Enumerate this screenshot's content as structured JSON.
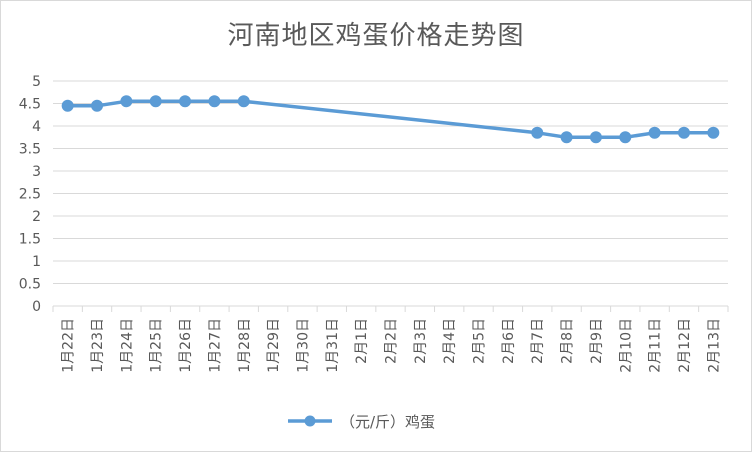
{
  "chart_data": {
    "type": "line",
    "title": "河南地区鸡蛋价格走势图",
    "categories": [
      "1月22日",
      "1月23日",
      "1月24日",
      "1月25日",
      "1月26日",
      "1月27日",
      "1月28日",
      "1月29日",
      "1月30日",
      "1月31日",
      "2月1日",
      "2月2日",
      "2月3日",
      "2月4日",
      "2月5日",
      "2月6日",
      "2月7日",
      "2月8日",
      "2月9日",
      "2月10日",
      "2月11日",
      "2月12日",
      "2月13日"
    ],
    "series": [
      {
        "name": "（元/斤）鸡蛋",
        "values": [
          4.45,
          4.45,
          4.55,
          4.55,
          4.55,
          4.55,
          4.55,
          null,
          null,
          null,
          null,
          null,
          null,
          null,
          null,
          null,
          3.85,
          3.75,
          3.75,
          3.75,
          3.85,
          3.85,
          3.85
        ]
      }
    ],
    "ylim": [
      0,
      5
    ],
    "yticks": [
      "0",
      "0.5",
      "1",
      "1.5",
      "2",
      "2.5",
      "3",
      "3.5",
      "4",
      "4.5",
      "5"
    ],
    "grid": true,
    "legend": "bottom",
    "colors": {
      "line": "#5b9bd5",
      "grid": "#d9d9d9",
      "text": "#595959"
    }
  }
}
